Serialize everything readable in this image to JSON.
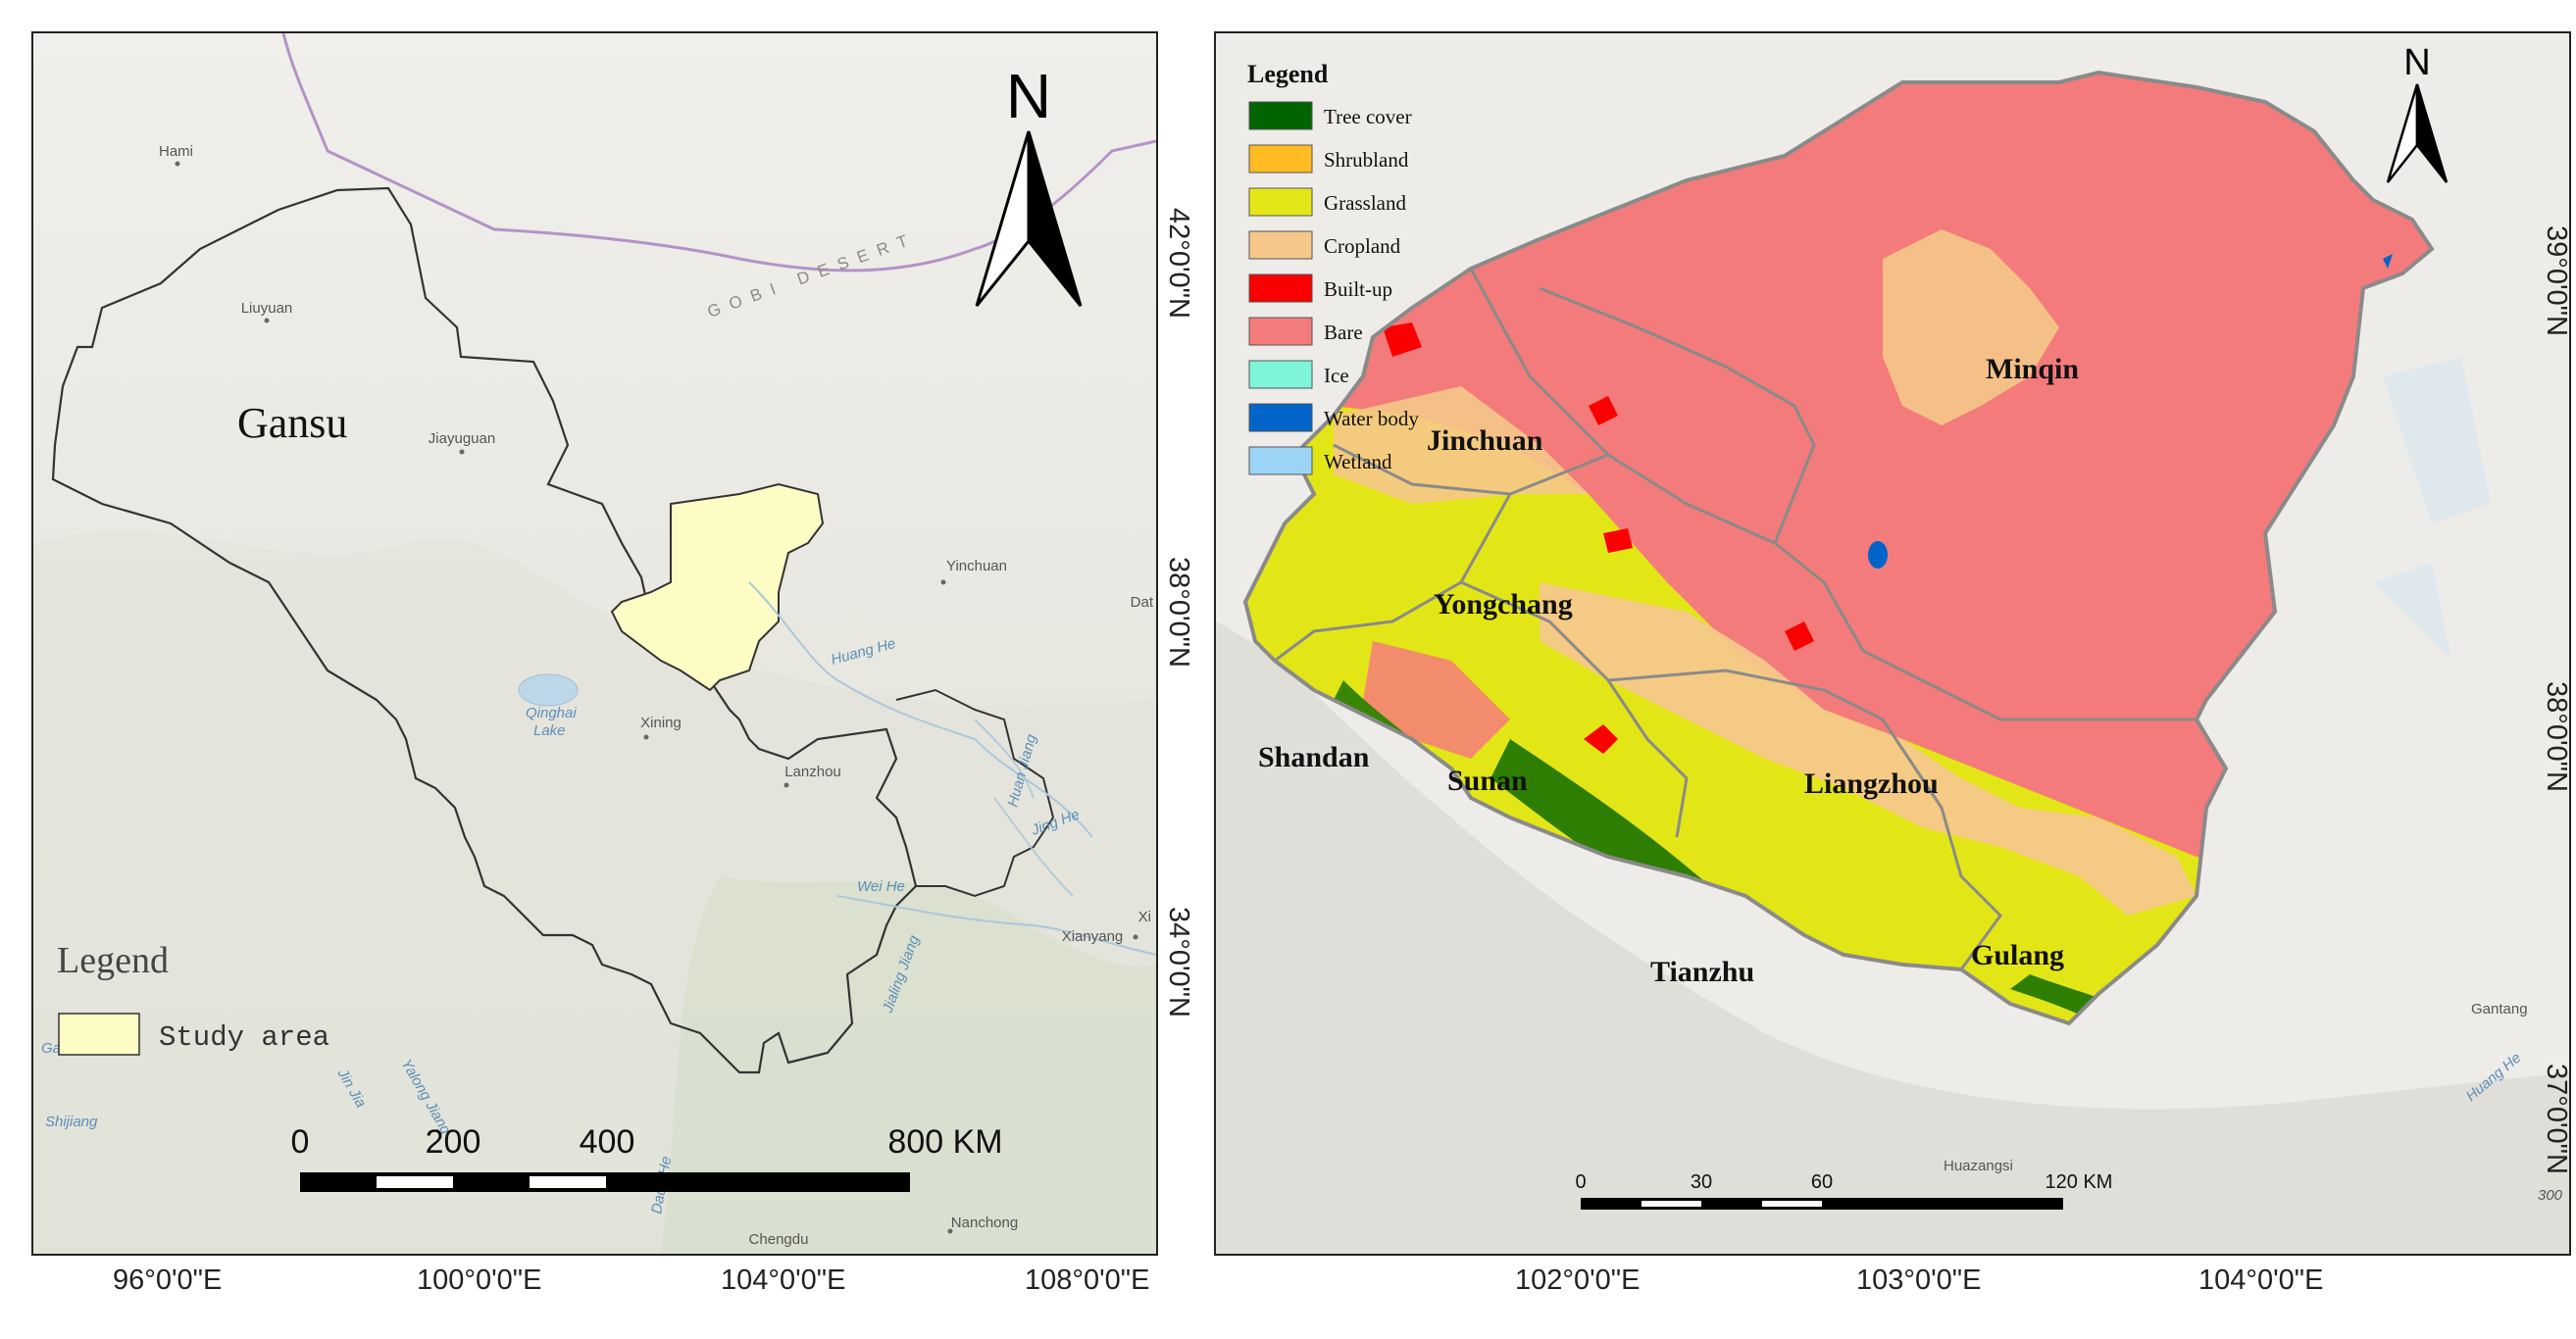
{
  "left_map": {
    "province_label": "Gansu",
    "desert_label": "GOBI DESERT",
    "places": [
      {
        "name": "Hami"
      },
      {
        "name": "Liuyuan"
      },
      {
        "name": "Jiayuguan"
      },
      {
        "name": "Yinchuan"
      },
      {
        "name": "Xining"
      },
      {
        "name": "Lanzhou"
      },
      {
        "name": "Xianyang"
      },
      {
        "name": "Chengdu"
      },
      {
        "name": "Nanchong"
      },
      {
        "name": "Xi"
      },
      {
        "name": "Dat"
      }
    ],
    "lake": [
      "Qinghai",
      "Lake"
    ],
    "rivers": [
      "Huang He",
      "Wei He",
      "Jing He",
      "Huan Jiang",
      "Jialing Jiang",
      "Yalong Jiang",
      "Jin Jia",
      "Shijiang",
      "Dadu He",
      "Ganm"
    ],
    "north": "N",
    "legend": {
      "title": "Legend",
      "items": [
        {
          "label": "Study area",
          "color": "#fdfcc4"
        }
      ]
    },
    "scale": {
      "ticks": [
        "0",
        "200",
        "400",
        "800 KM"
      ]
    },
    "lon_labels": [
      "96°0'0\"E",
      "100°0'0\"E",
      "104°0'0\"E",
      "108°0'0\"E"
    ],
    "lat_labels": [
      "42°0'0\"N",
      "38°0'0\"N",
      "34°0'0\"N"
    ]
  },
  "right_map": {
    "north": "N",
    "legend": {
      "title": "Legend",
      "items": [
        {
          "label": "Tree cover",
          "color": "#006400"
        },
        {
          "label": "Shrubland",
          "color": "#ffbb22"
        },
        {
          "label": "Grassland",
          "color": "#e3e616"
        },
        {
          "label": "Cropland",
          "color": "#f5c88a"
        },
        {
          "label": "Built-up",
          "color": "#fa0000"
        },
        {
          "label": "Bare",
          "color": "#f47b7b"
        },
        {
          "label": "Ice",
          "color": "#7ef5d8"
        },
        {
          "label": "Water body",
          "color": "#0064c8"
        },
        {
          "label": "Wetland",
          "color": "#9bd4f5"
        }
      ]
    },
    "counties": [
      "Minqin",
      "Jinchuan",
      "Yongchang",
      "Shandan",
      "Sunan",
      "Liangzhou",
      "Tianzhu",
      "Gulang"
    ],
    "places": [
      {
        "name": "Huazangsi"
      },
      {
        "name": "Gantang"
      }
    ],
    "rivers": [
      "Huang He"
    ],
    "elevation_label": "300",
    "scale": {
      "ticks": [
        "0",
        "30",
        "60",
        "120 KM"
      ]
    },
    "lon_labels": [
      "102°0'0\"E",
      "103°0'0\"E",
      "104°0'0\"E"
    ],
    "lat_labels": [
      "39°0'0\"N",
      "38°0'0\"N",
      "37°0'0\"N"
    ]
  }
}
